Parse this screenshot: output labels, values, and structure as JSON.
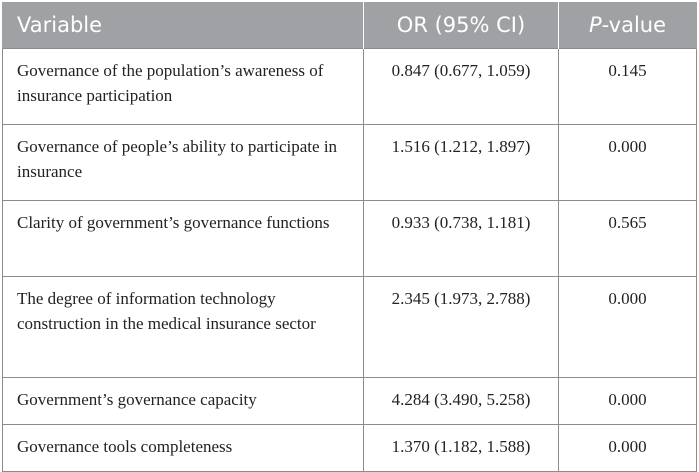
{
  "table": {
    "headers": {
      "variable": "Variable",
      "or": "OR (95% CI)",
      "p_italic": "P",
      "p_rest": "-value"
    },
    "rows": [
      {
        "variable": "Governance of the population’s awareness of insurance participation",
        "or": "0.847 (0.677, 1.059)",
        "p": "0.145"
      },
      {
        "variable": "Governance of people’s ability to participate in insurance",
        "or": "1.516 (1.212, 1.897)",
        "p": "0.000"
      },
      {
        "variable": "Clarity of government’s governance functions",
        "or": "0.933 (0.738, 1.181)",
        "p": "0.565"
      },
      {
        "variable": "The degree of information technology construction in the medical insurance sector",
        "or": "2.345 (1.973, 2.788)",
        "p": "0.000"
      },
      {
        "variable": "Government’s governance capacity",
        "or": "4.284 (3.490, 5.258)",
        "p": "0.000"
      },
      {
        "variable": "Governance tools completeness",
        "or": "1.370 (1.182, 1.588)",
        "p": "0.000"
      }
    ]
  }
}
